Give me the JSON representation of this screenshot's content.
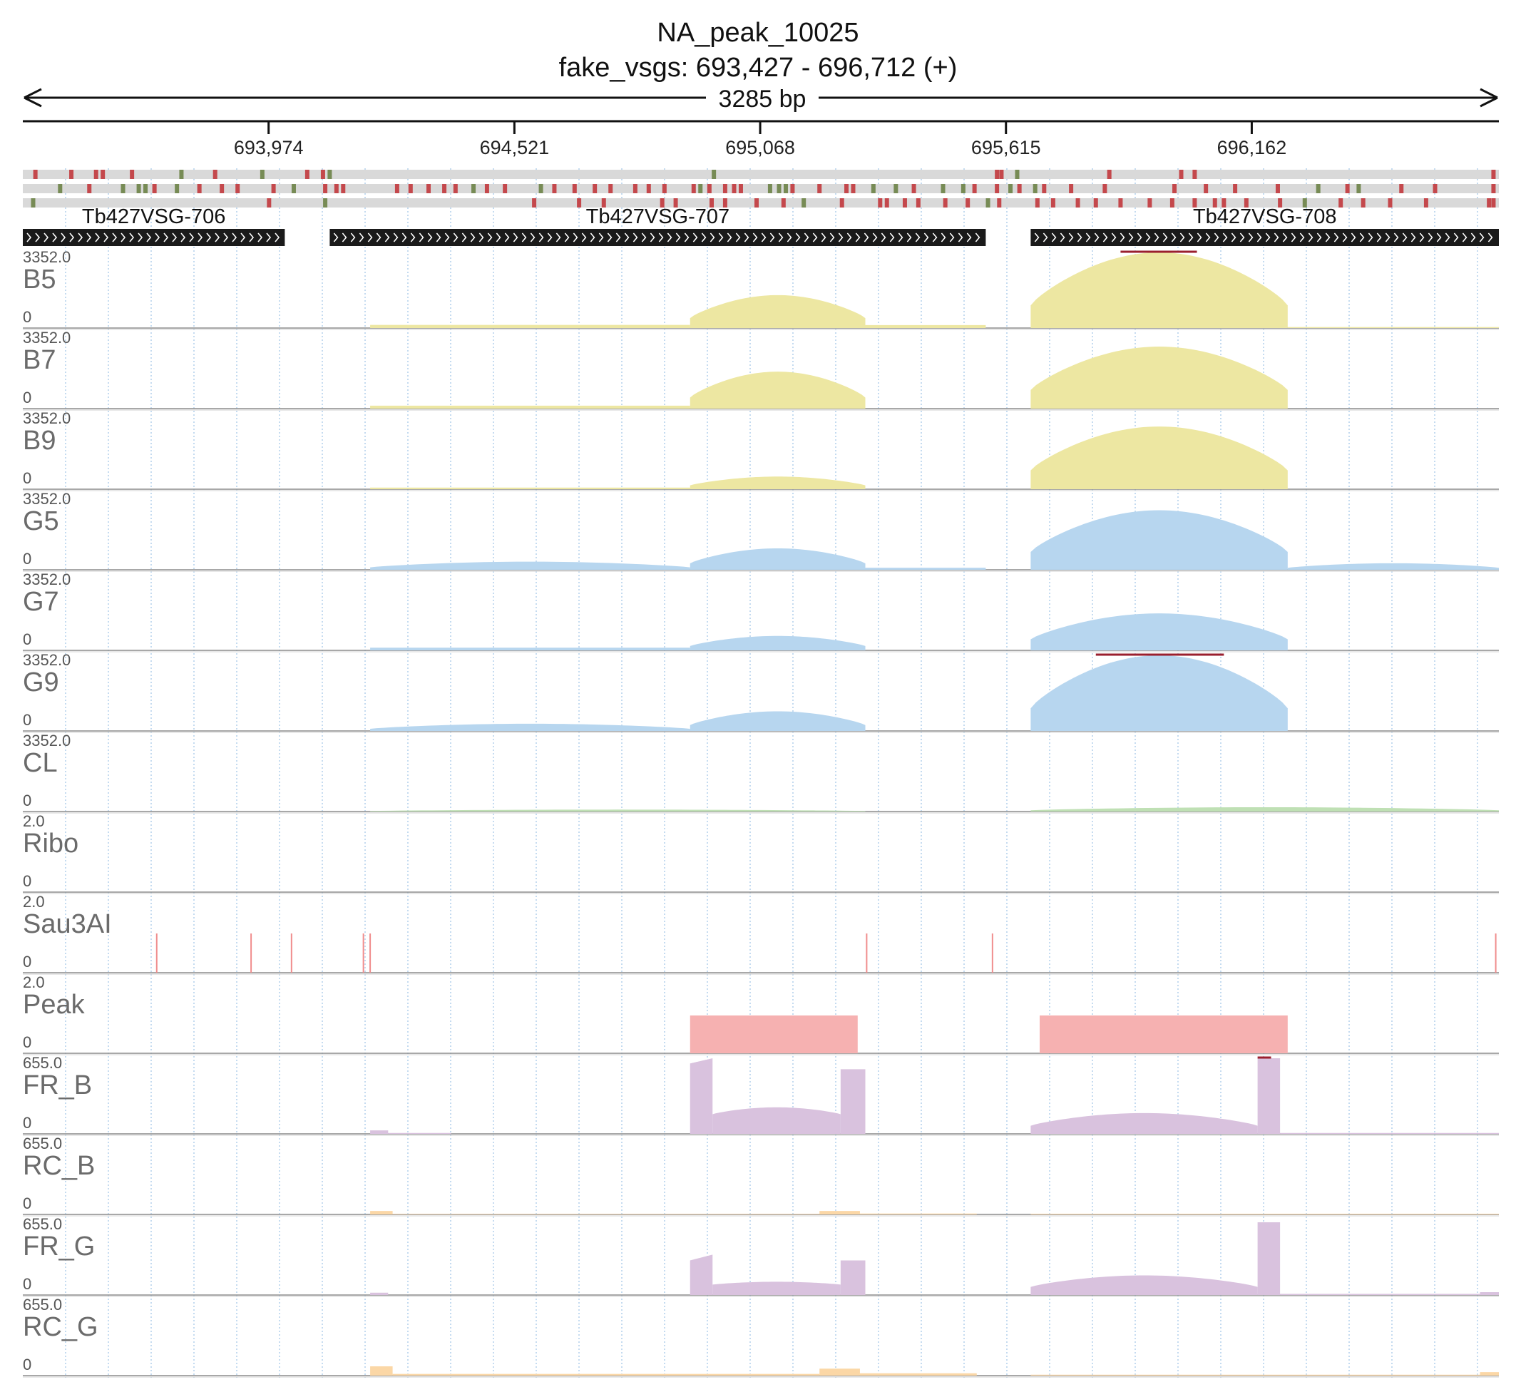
{
  "header": {
    "title": "NA_peak_10025",
    "subtitle": "fake_vsgs: 693,427 - 696,712 (+)",
    "span_label": "3285 bp"
  },
  "chart_data": {
    "type": "area",
    "region": {
      "chrom": "fake_vsgs",
      "start": 693427,
      "end": 696712,
      "strand": "+"
    },
    "ruler_ticks": [
      {
        "pos": 693974,
        "label": "693,974"
      },
      {
        "pos": 694521,
        "label": "694,521"
      },
      {
        "pos": 695068,
        "label": "695,068"
      },
      {
        "pos": 695615,
        "label": "695,615"
      },
      {
        "pos": 696162,
        "label": "696,162"
      }
    ],
    "genes": [
      {
        "name": "Tb427VSG-706",
        "start": 693427,
        "end": 694010,
        "strand": "+"
      },
      {
        "name": "Tb427VSG-707",
        "start": 694110,
        "end": 695570,
        "strand": "+"
      },
      {
        "name": "Tb427VSG-708",
        "start": 695670,
        "end": 696712,
        "strand": "+"
      }
    ],
    "colors": {
      "yellow": "#ede7a2",
      "blue": "#b7d6ef",
      "green": "#bfe0b4",
      "peak": "#f6b1b1",
      "sau": "#f08d8d",
      "purple": "#d9c2de",
      "orange": "#fbd7a6",
      "clip": "#9a1f2e",
      "variant_red": "#c4484c",
      "variant_green": "#778b55",
      "gene_bar": "#1a1a1a",
      "grid": "#9ec3e6"
    },
    "tracks": [
      {
        "name": "B5",
        "max": "3352.0",
        "min": "0",
        "style": "coverage",
        "color": "yellow",
        "segments": [
          {
            "start": 694200,
            "end": 694912,
            "peak": 140,
            "shape": "flat"
          },
          {
            "start": 694912,
            "end": 695302,
            "peak": 1460,
            "shape": "arch"
          },
          {
            "start": 695302,
            "end": 695570,
            "peak": 130,
            "shape": "flat"
          },
          {
            "start": 695670,
            "end": 696242,
            "peak": 3352,
            "shape": "arch",
            "clip": [
              695870,
              696040
            ]
          },
          {
            "start": 696242,
            "end": 696712,
            "peak": 45,
            "shape": "flat"
          }
        ]
      },
      {
        "name": "B7",
        "max": "3352.0",
        "min": "0",
        "style": "coverage",
        "color": "yellow",
        "segments": [
          {
            "start": 694200,
            "end": 694912,
            "peak": 130,
            "shape": "flat"
          },
          {
            "start": 694912,
            "end": 695302,
            "peak": 1640,
            "shape": "arch"
          },
          {
            "start": 695670,
            "end": 696242,
            "peak": 2750,
            "shape": "arch"
          }
        ]
      },
      {
        "name": "B9",
        "max": "3352.0",
        "min": "0",
        "style": "coverage",
        "color": "yellow",
        "segments": [
          {
            "start": 694200,
            "end": 694912,
            "peak": 70,
            "shape": "flat"
          },
          {
            "start": 694912,
            "end": 695302,
            "peak": 560,
            "shape": "arch"
          },
          {
            "start": 695670,
            "end": 696242,
            "peak": 2780,
            "shape": "arch"
          }
        ]
      },
      {
        "name": "G5",
        "max": "3352.0",
        "min": "0",
        "style": "coverage",
        "color": "blue",
        "segments": [
          {
            "start": 694200,
            "end": 694912,
            "peak": 360,
            "shape": "arch"
          },
          {
            "start": 694912,
            "end": 695302,
            "peak": 950,
            "shape": "arch"
          },
          {
            "start": 695302,
            "end": 695570,
            "peak": 90,
            "shape": "flat"
          },
          {
            "start": 695670,
            "end": 696242,
            "peak": 2640,
            "shape": "arch"
          },
          {
            "start": 696242,
            "end": 696712,
            "peak": 290,
            "shape": "arch"
          }
        ]
      },
      {
        "name": "G7",
        "max": "3352.0",
        "min": "0",
        "style": "coverage",
        "color": "blue",
        "segments": [
          {
            "start": 694200,
            "end": 694912,
            "peak": 120,
            "shape": "flat"
          },
          {
            "start": 694912,
            "end": 695302,
            "peak": 640,
            "shape": "arch"
          },
          {
            "start": 695670,
            "end": 696242,
            "peak": 1640,
            "shape": "arch"
          }
        ]
      },
      {
        "name": "G9",
        "max": "3352.0",
        "min": "0",
        "style": "coverage",
        "color": "blue",
        "segments": [
          {
            "start": 694200,
            "end": 694912,
            "peak": 320,
            "shape": "arch"
          },
          {
            "start": 694912,
            "end": 695302,
            "peak": 870,
            "shape": "arch"
          },
          {
            "start": 695670,
            "end": 696242,
            "peak": 3352,
            "shape": "arch",
            "clip": [
              695815,
              696100
            ]
          }
        ]
      },
      {
        "name": "CL",
        "max": "3352.0",
        "min": "0",
        "style": "coverage",
        "color": "green",
        "segments": [
          {
            "start": 694200,
            "end": 695302,
            "peak": 85,
            "shape": "arch"
          },
          {
            "start": 695670,
            "end": 696712,
            "peak": 190,
            "shape": "arch"
          }
        ]
      },
      {
        "name": "Ribo",
        "max": "2.0",
        "min": "0",
        "style": "coverage",
        "color": "green",
        "segments": []
      },
      {
        "name": "Sau3AI",
        "max": "2.0",
        "min": "0",
        "style": "sites",
        "color": "sau",
        "sites": [
          693725,
          693935,
          694025,
          694185,
          694200,
          695305,
          695585,
          696705
        ]
      },
      {
        "name": "Peak",
        "max": "2.0",
        "min": "0",
        "style": "blocks",
        "color": "peak",
        "blocks": [
          {
            "start": 694912,
            "end": 695285,
            "value": 1
          },
          {
            "start": 695690,
            "end": 696242,
            "value": 1
          }
        ]
      },
      {
        "name": "FR_B",
        "max": "655.0",
        "min": "0",
        "style": "coverage",
        "color": "purple",
        "segments": [
          {
            "start": 694200,
            "end": 694240,
            "peak": 30,
            "shape": "flat"
          },
          {
            "start": 694240,
            "end": 694380,
            "peak": 8,
            "shape": "flat"
          },
          {
            "start": 694912,
            "end": 694962,
            "peak": 655,
            "shape": "rise",
            "low": 610
          },
          {
            "start": 694962,
            "end": 695247,
            "peak": 230,
            "shape": "arch",
            "low": 170
          },
          {
            "start": 695247,
            "end": 695302,
            "peak": 560,
            "shape": "flat"
          },
          {
            "start": 695670,
            "end": 696175,
            "peak": 180,
            "shape": "arch",
            "low": 70
          },
          {
            "start": 696175,
            "end": 696225,
            "peak": 655,
            "shape": "flat",
            "clip": [
              696175,
              696205
            ]
          },
          {
            "start": 696225,
            "end": 696712,
            "peak": 8,
            "shape": "flat"
          }
        ]
      },
      {
        "name": "RC_B",
        "max": "655.0",
        "min": "0",
        "style": "coverage",
        "color": "orange",
        "segments": [
          {
            "start": 694200,
            "end": 694250,
            "peak": 30,
            "shape": "flat"
          },
          {
            "start": 694250,
            "end": 695200,
            "peak": 5,
            "shape": "flat"
          },
          {
            "start": 695200,
            "end": 695290,
            "peak": 30,
            "shape": "flat"
          },
          {
            "start": 695290,
            "end": 695550,
            "peak": 8,
            "shape": "flat"
          },
          {
            "start": 695670,
            "end": 696712,
            "peak": 6,
            "shape": "flat"
          }
        ]
      },
      {
        "name": "FR_G",
        "max": "655.0",
        "min": "0",
        "style": "coverage",
        "color": "purple",
        "segments": [
          {
            "start": 694200,
            "end": 694240,
            "peak": 20,
            "shape": "flat"
          },
          {
            "start": 694912,
            "end": 694962,
            "peak": 350,
            "shape": "rise",
            "low": 300
          },
          {
            "start": 694962,
            "end": 695247,
            "peak": 115,
            "shape": "arch",
            "low": 90
          },
          {
            "start": 695247,
            "end": 695302,
            "peak": 300,
            "shape": "flat"
          },
          {
            "start": 695670,
            "end": 696175,
            "peak": 170,
            "shape": "arch",
            "low": 70
          },
          {
            "start": 696175,
            "end": 696225,
            "peak": 630,
            "shape": "flat"
          },
          {
            "start": 696225,
            "end": 696670,
            "peak": 10,
            "shape": "flat"
          },
          {
            "start": 696670,
            "end": 696712,
            "peak": 25,
            "shape": "flat"
          }
        ]
      },
      {
        "name": "RC_G",
        "max": "655.0",
        "min": "0",
        "style": "coverage",
        "color": "orange",
        "segments": [
          {
            "start": 694200,
            "end": 694250,
            "peak": 80,
            "shape": "flat"
          },
          {
            "start": 694250,
            "end": 695200,
            "peak": 15,
            "shape": "flat"
          },
          {
            "start": 695200,
            "end": 695290,
            "peak": 60,
            "shape": "flat"
          },
          {
            "start": 695290,
            "end": 695550,
            "peak": 20,
            "shape": "flat"
          },
          {
            "start": 695670,
            "end": 696670,
            "peak": 8,
            "shape": "flat"
          },
          {
            "start": 696670,
            "end": 696712,
            "peak": 30,
            "shape": "flat"
          }
        ]
      }
    ],
    "variant_rows": [
      [
        {
          "pos": 693455,
          "c": "r"
        },
        {
          "pos": 693535,
          "c": "r"
        },
        {
          "pos": 693590,
          "c": "r"
        },
        {
          "pos": 693605,
          "c": "r"
        },
        {
          "pos": 693670,
          "c": "r"
        },
        {
          "pos": 693780,
          "c": "g"
        },
        {
          "pos": 693855,
          "c": "r"
        },
        {
          "pos": 693960,
          "c": "g"
        },
        {
          "pos": 694060,
          "c": "r"
        },
        {
          "pos": 694095,
          "c": "r"
        },
        {
          "pos": 694110,
          "c": "g"
        },
        {
          "pos": 694965,
          "c": "g"
        },
        {
          "pos": 695595,
          "c": "r"
        },
        {
          "pos": 695605,
          "c": "r"
        },
        {
          "pos": 695640,
          "c": "g"
        },
        {
          "pos": 695845,
          "c": "r"
        },
        {
          "pos": 696005,
          "c": "r"
        },
        {
          "pos": 696035,
          "c": "r"
        },
        {
          "pos": 696700,
          "c": "r"
        }
      ],
      [
        {
          "pos": 693510,
          "c": "g"
        },
        {
          "pos": 693575,
          "c": "r"
        },
        {
          "pos": 693650,
          "c": "g"
        },
        {
          "pos": 693685,
          "c": "g"
        },
        {
          "pos": 693700,
          "c": "g"
        },
        {
          "pos": 693720,
          "c": "r"
        },
        {
          "pos": 693770,
          "c": "g"
        },
        {
          "pos": 693820,
          "c": "r"
        },
        {
          "pos": 693870,
          "c": "r"
        },
        {
          "pos": 693905,
          "c": "r"
        },
        {
          "pos": 693985,
          "c": "r"
        },
        {
          "pos": 694030,
          "c": "g"
        },
        {
          "pos": 694100,
          "c": "r"
        },
        {
          "pos": 694125,
          "c": "r"
        },
        {
          "pos": 694140,
          "c": "r"
        },
        {
          "pos": 694260,
          "c": "r"
        },
        {
          "pos": 694290,
          "c": "r"
        },
        {
          "pos": 694330,
          "c": "r"
        },
        {
          "pos": 694365,
          "c": "r"
        },
        {
          "pos": 694390,
          "c": "r"
        },
        {
          "pos": 694430,
          "c": "g"
        },
        {
          "pos": 694460,
          "c": "r"
        },
        {
          "pos": 694500,
          "c": "r"
        },
        {
          "pos": 694580,
          "c": "g"
        },
        {
          "pos": 694610,
          "c": "r"
        },
        {
          "pos": 694655,
          "c": "r"
        },
        {
          "pos": 694700,
          "c": "r"
        },
        {
          "pos": 694735,
          "c": "r"
        },
        {
          "pos": 694790,
          "c": "r"
        },
        {
          "pos": 694820,
          "c": "r"
        },
        {
          "pos": 694855,
          "c": "r"
        },
        {
          "pos": 694920,
          "c": "r"
        },
        {
          "pos": 694935,
          "c": "g"
        },
        {
          "pos": 694955,
          "c": "r"
        },
        {
          "pos": 694990,
          "c": "r"
        },
        {
          "pos": 695010,
          "c": "r"
        },
        {
          "pos": 695025,
          "c": "r"
        },
        {
          "pos": 695090,
          "c": "g"
        },
        {
          "pos": 695110,
          "c": "g"
        },
        {
          "pos": 695125,
          "c": "g"
        },
        {
          "pos": 695140,
          "c": "r"
        },
        {
          "pos": 695200,
          "c": "r"
        },
        {
          "pos": 695260,
          "c": "r"
        },
        {
          "pos": 695275,
          "c": "r"
        },
        {
          "pos": 695320,
          "c": "g"
        },
        {
          "pos": 695370,
          "c": "g"
        },
        {
          "pos": 695410,
          "c": "r"
        },
        {
          "pos": 695475,
          "c": "g"
        },
        {
          "pos": 695520,
          "c": "g"
        },
        {
          "pos": 695545,
          "c": "r"
        },
        {
          "pos": 695595,
          "c": "r"
        },
        {
          "pos": 695625,
          "c": "g"
        },
        {
          "pos": 695645,
          "c": "r"
        },
        {
          "pos": 695680,
          "c": "g"
        },
        {
          "pos": 695700,
          "c": "r"
        },
        {
          "pos": 695760,
          "c": "r"
        },
        {
          "pos": 695835,
          "c": "r"
        },
        {
          "pos": 695990,
          "c": "r"
        },
        {
          "pos": 696060,
          "c": "r"
        },
        {
          "pos": 696125,
          "c": "r"
        },
        {
          "pos": 696220,
          "c": "r"
        },
        {
          "pos": 696310,
          "c": "g"
        },
        {
          "pos": 696375,
          "c": "r"
        },
        {
          "pos": 696400,
          "c": "g"
        },
        {
          "pos": 696495,
          "c": "r"
        },
        {
          "pos": 696570,
          "c": "r"
        },
        {
          "pos": 696700,
          "c": "r"
        }
      ],
      [
        {
          "pos": 693450,
          "c": "g"
        },
        {
          "pos": 693975,
          "c": "r"
        },
        {
          "pos": 694100,
          "c": "g"
        },
        {
          "pos": 694565,
          "c": "r"
        },
        {
          "pos": 694665,
          "c": "r"
        },
        {
          "pos": 694720,
          "c": "r"
        },
        {
          "pos": 694850,
          "c": "r"
        },
        {
          "pos": 694880,
          "c": "r"
        },
        {
          "pos": 694960,
          "c": "r"
        },
        {
          "pos": 694990,
          "c": "r"
        },
        {
          "pos": 695060,
          "c": "r"
        },
        {
          "pos": 695120,
          "c": "r"
        },
        {
          "pos": 695165,
          "c": "g"
        },
        {
          "pos": 695250,
          "c": "r"
        },
        {
          "pos": 695335,
          "c": "r"
        },
        {
          "pos": 695350,
          "c": "r"
        },
        {
          "pos": 695390,
          "c": "r"
        },
        {
          "pos": 695420,
          "c": "r"
        },
        {
          "pos": 695480,
          "c": "r"
        },
        {
          "pos": 695530,
          "c": "r"
        },
        {
          "pos": 695575,
          "c": "g"
        },
        {
          "pos": 695600,
          "c": "r"
        },
        {
          "pos": 695685,
          "c": "r"
        },
        {
          "pos": 695720,
          "c": "r"
        },
        {
          "pos": 695775,
          "c": "r"
        },
        {
          "pos": 695815,
          "c": "r"
        },
        {
          "pos": 695870,
          "c": "r"
        },
        {
          "pos": 695935,
          "c": "r"
        },
        {
          "pos": 695985,
          "c": "r"
        },
        {
          "pos": 696035,
          "c": "r"
        },
        {
          "pos": 696080,
          "c": "r"
        },
        {
          "pos": 696100,
          "c": "r"
        },
        {
          "pos": 696150,
          "c": "r"
        },
        {
          "pos": 696225,
          "c": "r"
        },
        {
          "pos": 696280,
          "c": "g"
        },
        {
          "pos": 696360,
          "c": "r"
        },
        {
          "pos": 696410,
          "c": "r"
        },
        {
          "pos": 696470,
          "c": "r"
        },
        {
          "pos": 696550,
          "c": "r"
        },
        {
          "pos": 696690,
          "c": "r"
        },
        {
          "pos": 696700,
          "c": "r"
        }
      ]
    ]
  }
}
